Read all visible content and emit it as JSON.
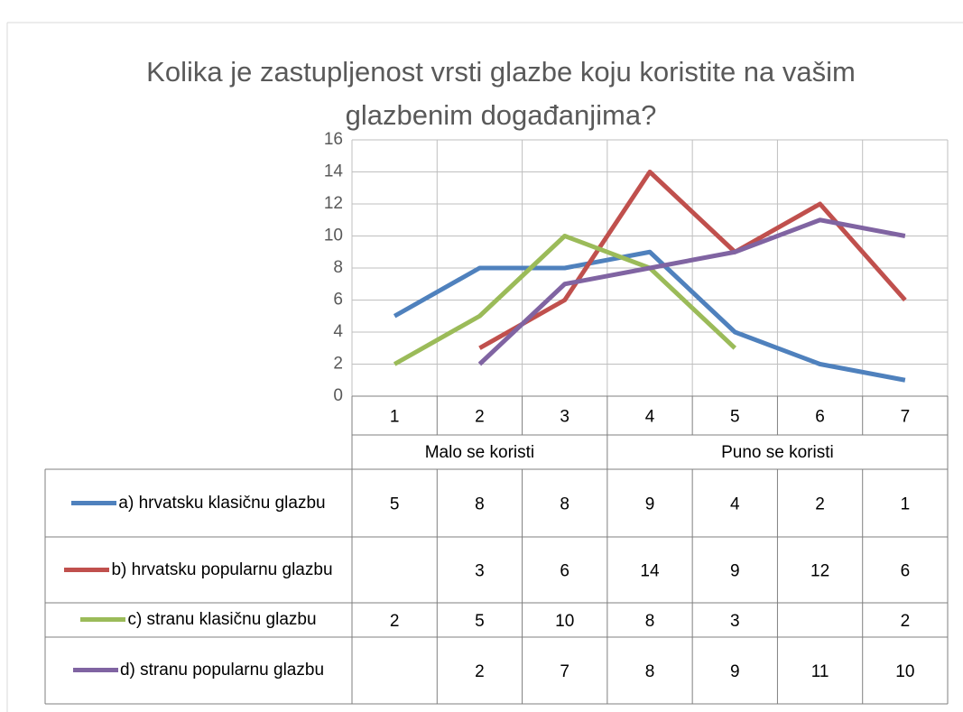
{
  "chart_data": {
    "type": "line",
    "title": "Kolika je zastupljenost vrsti glazbe koju koristite na vašim glazbenim događanjima?",
    "categories": [
      "1",
      "2",
      "3",
      "4",
      "5",
      "6",
      "7"
    ],
    "groups": [
      {
        "name": "Malo se koristi",
        "span": 3
      },
      {
        "name": "Puno se koristi",
        "span": 4
      }
    ],
    "series": [
      {
        "name": "a) hrvatsku klasičnu glazbu",
        "color": "#4f81bd",
        "values": [
          5,
          8,
          8,
          9,
          4,
          2,
          1
        ]
      },
      {
        "name": "b) hrvatsku popularnu glazbu",
        "color": "#c0504d",
        "values": [
          null,
          3,
          6,
          14,
          9,
          12,
          6
        ]
      },
      {
        "name": "c) stranu klasičnu glazbu",
        "color": "#9bbb59",
        "values": [
          2,
          5,
          10,
          8,
          3,
          null,
          2
        ]
      },
      {
        "name": "d) stranu popularnu glazbu",
        "color": "#8064a2",
        "values": [
          null,
          2,
          7,
          8,
          9,
          11,
          10
        ]
      }
    ],
    "ylim": [
      0,
      16
    ],
    "yticks": [
      0,
      2,
      4,
      6,
      8,
      10,
      12,
      14,
      16
    ],
    "grid": true,
    "data_table": true
  }
}
